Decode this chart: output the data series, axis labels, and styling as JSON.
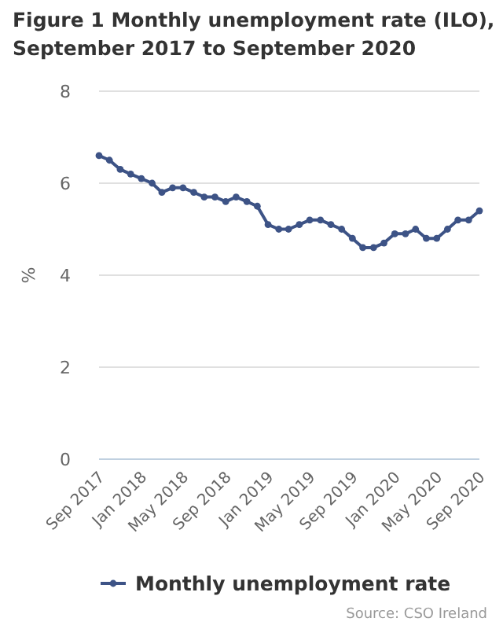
{
  "chart_data": {
    "type": "line",
    "title": "Figure 1 Monthly unemployment rate (ILO), September 2017 to September 2020",
    "ylabel": "%",
    "x": [
      "2017-09",
      "2017-10",
      "2017-11",
      "2017-12",
      "2018-01",
      "2018-02",
      "2018-03",
      "2018-04",
      "2018-05",
      "2018-06",
      "2018-07",
      "2018-08",
      "2018-09",
      "2018-10",
      "2018-11",
      "2018-12",
      "2019-01",
      "2019-02",
      "2019-03",
      "2019-04",
      "2019-05",
      "2019-06",
      "2019-07",
      "2019-08",
      "2019-09",
      "2019-10",
      "2019-11",
      "2019-12",
      "2020-01",
      "2020-02",
      "2020-03",
      "2020-04",
      "2020-05",
      "2020-06",
      "2020-07",
      "2020-08",
      "2020-09"
    ],
    "series": [
      {
        "name": "Monthly unemployment rate",
        "color": "#3d5386",
        "values": [
          6.6,
          6.5,
          6.3,
          6.2,
          6.1,
          6.0,
          5.8,
          5.9,
          5.9,
          5.8,
          5.7,
          5.7,
          5.6,
          5.7,
          5.6,
          5.5,
          5.1,
          5.0,
          5.0,
          5.1,
          5.2,
          5.2,
          5.1,
          5.0,
          4.8,
          4.6,
          4.6,
          4.7,
          4.9,
          4.9,
          5.0,
          4.8,
          4.8,
          5.0,
          5.2,
          5.2,
          5.4
        ]
      }
    ],
    "xlim": [
      "2017-09",
      "2020-09"
    ],
    "xticks": [
      {
        "value": "2017-09",
        "label": "Sep 2017"
      },
      {
        "value": "2018-01",
        "label": "Jan 2018"
      },
      {
        "value": "2018-05",
        "label": "May 2018"
      },
      {
        "value": "2018-09",
        "label": "Sep 2018"
      },
      {
        "value": "2019-01",
        "label": "Jan 2019"
      },
      {
        "value": "2019-05",
        "label": "May 2019"
      },
      {
        "value": "2019-09",
        "label": "Sep 2019"
      },
      {
        "value": "2020-01",
        "label": "Jan 2020"
      },
      {
        "value": "2020-05",
        "label": "May 2020"
      },
      {
        "value": "2020-09",
        "label": "Sep 2020"
      }
    ],
    "ylim": [
      0,
      8
    ],
    "yticks": [
      0,
      2,
      4,
      6,
      8
    ],
    "grid": "y",
    "legend": "bottom",
    "marker": "circle",
    "line_style": "solid",
    "annotations": [
      "Source: CSO Ireland"
    ]
  }
}
